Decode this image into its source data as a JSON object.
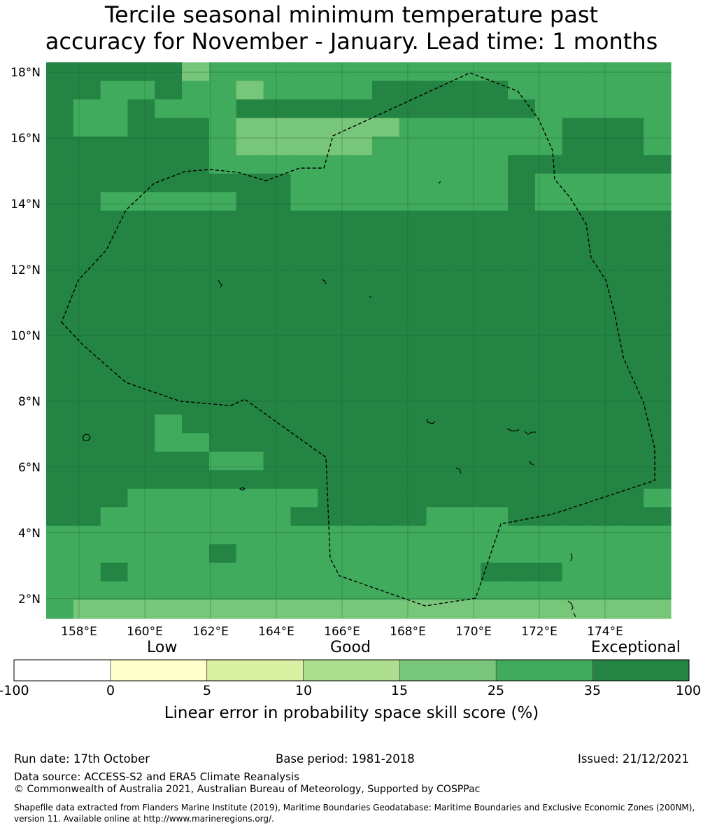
{
  "title_line1": "Tercile seasonal minimum temperature past",
  "title_line2": "accuracy for November - January. Lead time: 1 months",
  "chart_data": {
    "type": "heatmap",
    "title": "Tercile seasonal minimum temperature past accuracy for November - January. Lead time: 1 months",
    "x_ticks": [
      "158°E",
      "160°E",
      "162°E",
      "164°E",
      "166°E",
      "168°E",
      "170°E",
      "172°E",
      "174°E"
    ],
    "y_ticks": [
      "18°N",
      "16°N",
      "14°N",
      "12°N",
      "10°N",
      "8°N",
      "6°N",
      "4°N",
      "2°N"
    ],
    "x_range": [
      157,
      176
    ],
    "y_range": [
      1.4,
      18.3
    ],
    "dominant_category": "35-100",
    "colorbar": {
      "categories": [
        "Low",
        "Good",
        "Exceptional"
      ],
      "bounds": [
        "-100",
        "0",
        "5",
        "10",
        "15",
        "25",
        "35",
        "100"
      ],
      "colors": [
        "#ffffff",
        "#ffffcc",
        "#d9f0a3",
        "#addd8e",
        "#78c679",
        "#41ab5d",
        "#238443"
      ],
      "label": "Linear error in probability space skill score (%)"
    }
  },
  "footer": {
    "run_date": "Run date: 17th October",
    "base_period": "Base period: 1981-2018",
    "issued": "Issued: 21/12/2021",
    "data_source": "Data source: ACCESS-S2 and ERA5 Climate Reanalysis",
    "copyright": "© Commonwealth of Australia 2021, Australian Bureau of Meteorology, Supported by COSPPac",
    "shapefile_line1": "Shapefile data extracted from Flanders Marine Institute (2019), Maritime Boundaries Geodatabase: Maritime Boundaries and Exclusive Economic Zones (200NM),",
    "shapefile_line2": "version 11. Available online at http://www.marineregions.org/."
  }
}
